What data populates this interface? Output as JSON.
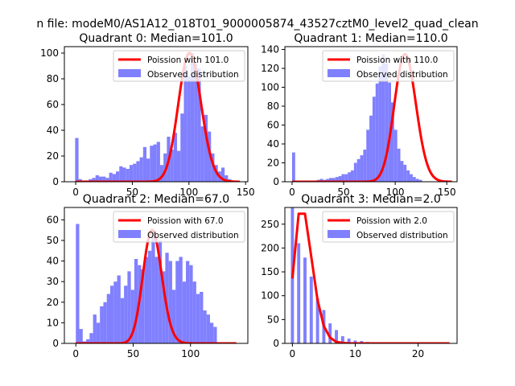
{
  "figure": {
    "suptitle": "n file: modeM0/AS1A12_018T01_9000005874_43527cztM0_level2_quad_clean"
  },
  "colors": {
    "hist": "#8080ff",
    "curve": "#ff0000",
    "axis": "#000000",
    "background": "#ffffff"
  },
  "chart_data": [
    {
      "type": "bar",
      "title": "Quadrant 0: Median=101.0",
      "xlim": [
        -10,
        152
      ],
      "ylim": [
        0,
        105
      ],
      "xticks": [
        0,
        50,
        100,
        150
      ],
      "yticks": [
        0,
        20,
        40,
        60,
        80,
        100
      ],
      "legend_position": "top-right",
      "legend": [
        "Poission with 101.0",
        "Observed distribution"
      ],
      "hist": {
        "name": "Observed distribution",
        "x0": -0.5,
        "bin_width": 3.0,
        "values": [
          34,
          2,
          1,
          1,
          2,
          3,
          5,
          4,
          4,
          3,
          7,
          6,
          8,
          12,
          11,
          10,
          13,
          14,
          16,
          19,
          27,
          18,
          28,
          29,
          31,
          13,
          22,
          35,
          25,
          38,
          24,
          53,
          90,
          82,
          100,
          92,
          88,
          43,
          52,
          39,
          22,
          13,
          8,
          11,
          5,
          2
        ]
      },
      "curve": {
        "name": "Poission with 101.0",
        "mean": 101.0,
        "x_range": [
          0,
          145
        ],
        "scale": 1.0
      }
    },
    {
      "type": "bar",
      "title": "Quadrant 1: Median=110.0",
      "xlim": [
        -7,
        160
      ],
      "ylim": [
        0,
        143
      ],
      "xticks": [
        0,
        50,
        100,
        150
      ],
      "yticks": [
        0,
        20,
        40,
        60,
        80,
        100,
        120,
        140
      ],
      "legend_position": "top-right",
      "legend": [
        "Poission with 110.0",
        "Observed distribution"
      ],
      "hist": {
        "name": "Observed distribution",
        "x0": 0.0,
        "bin_width": 3.0,
        "values": [
          31,
          0,
          0,
          1,
          1,
          1,
          1,
          1,
          2,
          3,
          2,
          3,
          4,
          4,
          5,
          6,
          8,
          8,
          10,
          12,
          20,
          24,
          28,
          34,
          55,
          70,
          90,
          104,
          122,
          135,
          125,
          105,
          84,
          55,
          35,
          22,
          18,
          12,
          8,
          5,
          3,
          2
        ]
      },
      "curve": {
        "name": "Poission with 110.0",
        "mean": 110.0,
        "x_range": [
          0,
          155
        ],
        "scale": 1.0
      }
    },
    {
      "type": "bar",
      "title": "Quadrant 2: Median=67.0",
      "xlim": [
        -10,
        150
      ],
      "ylim": [
        0,
        66
      ],
      "xticks": [
        0,
        50,
        100
      ],
      "yticks": [
        0,
        10,
        20,
        30,
        40,
        50,
        60
      ],
      "legend_position": "top-right",
      "legend": [
        "Poission with 67.0",
        "Observed distribution"
      ],
      "hist": {
        "name": "Observed distribution",
        "x0": 0.0,
        "bin_width": 3.0,
        "values": [
          58,
          7,
          1,
          2,
          5,
          14,
          10,
          18,
          20,
          24,
          28,
          30,
          33,
          22,
          28,
          35,
          26,
          41,
          38,
          36,
          42,
          45,
          55,
          42,
          50,
          35,
          44,
          40,
          26,
          40,
          42,
          30,
          40,
          38,
          30,
          24,
          25,
          16,
          14,
          10,
          8
        ]
      },
      "curve": {
        "name": "Poission with 67.0",
        "mean": 67.0,
        "x_range": [
          0,
          140
        ],
        "scale": 1.0
      }
    },
    {
      "type": "bar",
      "title": "Quadrant 3: Median=2.0",
      "xlim": [
        -1.2,
        26.2
      ],
      "ylim": [
        0,
        285
      ],
      "xticks": [
        0,
        10,
        20
      ],
      "yticks": [
        0,
        50,
        100,
        150,
        200,
        250
      ],
      "legend_position": "top-right",
      "legend": [
        "Poission with 2.0",
        "Observed distribution"
      ],
      "hist": {
        "name": "Observed distribution",
        "x0": -0.25,
        "bin_width": 0.5,
        "values": [
          285,
          0,
          210,
          0,
          180,
          0,
          140,
          0,
          95,
          0,
          70,
          0,
          42,
          0,
          28,
          0,
          15,
          0,
          10,
          0,
          6,
          0,
          5,
          0,
          3
        ]
      },
      "curve": {
        "name": "Poission with 2.0",
        "mean": 2.0,
        "x_range": [
          0,
          25
        ],
        "scale": 1.0,
        "step_values": [
          136,
          272,
          272,
          182,
          91,
          36,
          12,
          3,
          1,
          0,
          0,
          0,
          0,
          0,
          0,
          0,
          0,
          0,
          0,
          0,
          0,
          0,
          0,
          0,
          0,
          0
        ]
      }
    }
  ]
}
